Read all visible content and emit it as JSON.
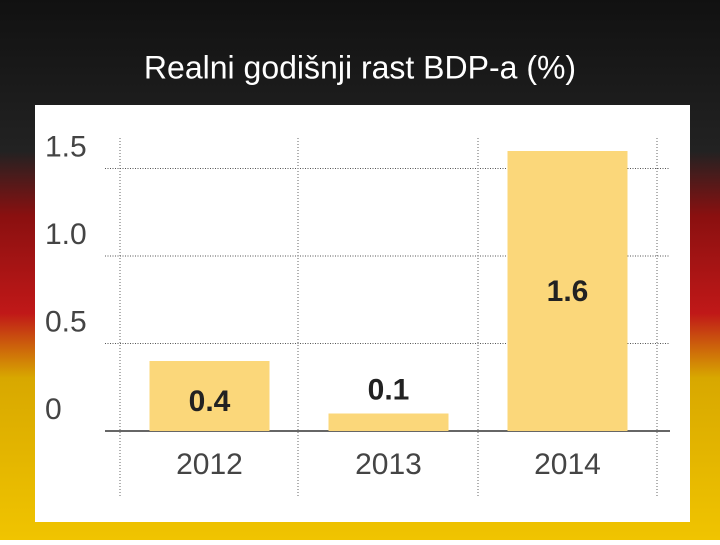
{
  "chart_data": {
    "type": "bar",
    "title": "Realni godišnji rast BDP-a (%)",
    "categories": [
      "2012",
      "2013",
      "2014"
    ],
    "values": [
      0.4,
      0.1,
      1.6
    ],
    "color": "#fbd77a",
    "ylim": [
      0,
      1.7
    ],
    "yticks": [
      0,
      0.5,
      {
        "value": 1,
        "label": "1.0"
      },
      1.5
    ],
    "grid": true
  }
}
